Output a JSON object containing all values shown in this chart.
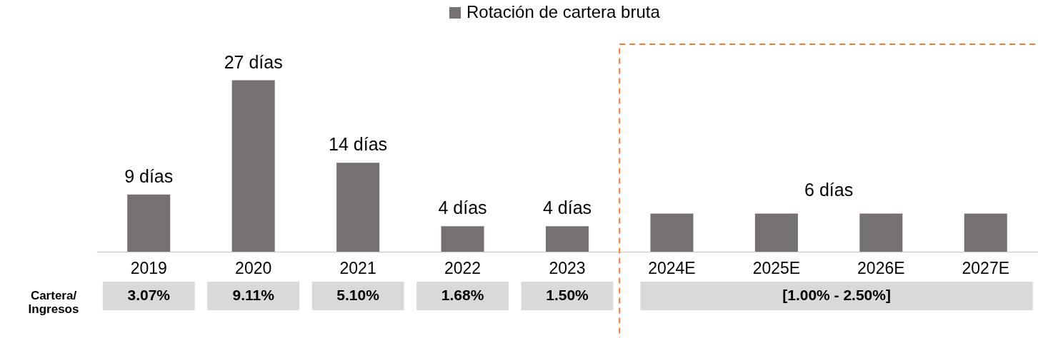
{
  "chart_data": {
    "type": "bar",
    "categories": [
      "2019",
      "2020",
      "2021",
      "2022",
      "2023",
      "2024E",
      "2025E",
      "2026E",
      "2027E"
    ],
    "series": [
      {
        "name": "Rotación de cartera bruta",
        "color": "#767171",
        "values": [
          9,
          27,
          14,
          4,
          4,
          6,
          6,
          6,
          6
        ],
        "value_labels": [
          "9 días",
          "27 días",
          "14 días",
          "4 días",
          "4 días",
          null,
          null,
          null,
          null
        ]
      }
    ],
    "legend": "top",
    "annotations": [
      "Cartera/\nIngresos",
      "6 días",
      "3.07%",
      "9.11%",
      "5.10%",
      "1.68%",
      "1.50%",
      "[1.00% - 2.50%]"
    ]
  }
}
